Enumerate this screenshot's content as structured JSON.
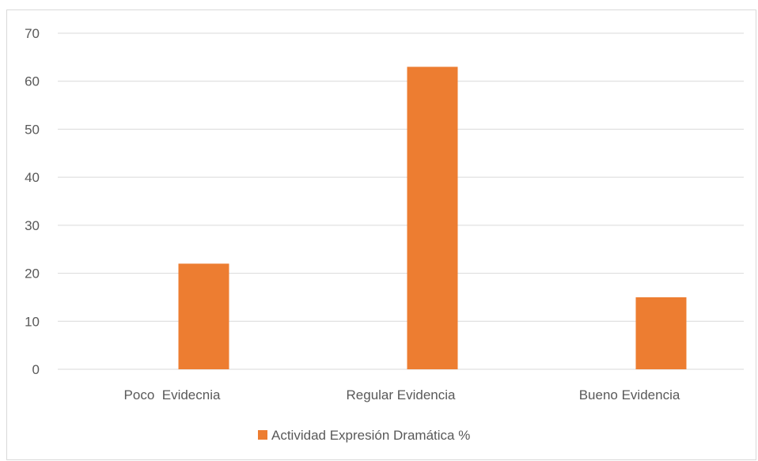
{
  "chart_data": {
    "type": "bar",
    "categories": [
      "Poco  Evidecnia",
      "Regular Evidencia",
      "Bueno Evidencia"
    ],
    "series": [
      {
        "name": "Actividad Expresión Dramática %",
        "values": [
          22,
          63,
          15
        ],
        "color": "#ED7D31"
      }
    ],
    "title": "",
    "xlabel": "",
    "ylabel": "",
    "ylim": [
      0,
      70
    ],
    "yticks": [
      0,
      10,
      20,
      30,
      40,
      50,
      60,
      70
    ],
    "grid": true,
    "legend_position": "bottom"
  }
}
